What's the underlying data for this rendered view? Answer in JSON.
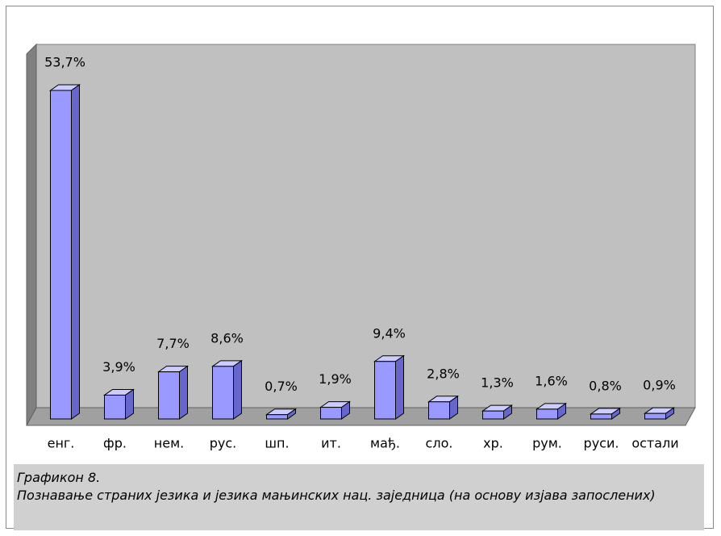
{
  "chart_data": {
    "type": "bar3d",
    "categories": [
      "енг.",
      "фр.",
      "нем.",
      "рус.",
      "шп.",
      "ит.",
      "мађ.",
      "сло.",
      "хр.",
      "рум.",
      "руси.",
      "остали"
    ],
    "values": [
      53.7,
      3.9,
      7.7,
      8.6,
      0.7,
      1.9,
      9.4,
      2.8,
      1.3,
      1.6,
      0.8,
      0.9
    ],
    "value_labels": [
      "53,7%",
      "3,9%",
      "7,7%",
      "8,6%",
      "0,7%",
      "1,9%",
      "9,4%",
      "2,8%",
      "1,3%",
      "1,6%",
      "0,8%",
      "0,9%"
    ],
    "color": "#9999ff",
    "caption": {
      "label": "Графикон 8.",
      "text": "Познавање страних језика и језика мањинских нац. заједница (на основу изјава запослених)"
    }
  }
}
